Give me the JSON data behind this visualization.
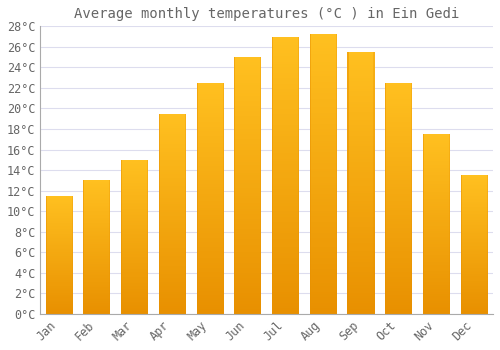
{
  "title": "Average monthly temperatures (°C ) in Ein Gedi",
  "months": [
    "Jan",
    "Feb",
    "Mar",
    "Apr",
    "May",
    "Jun",
    "Jul",
    "Aug",
    "Sep",
    "Oct",
    "Nov",
    "Dec"
  ],
  "values": [
    11.5,
    13.0,
    15.0,
    19.5,
    22.5,
    25.0,
    27.0,
    27.2,
    25.5,
    22.5,
    17.5,
    13.5
  ],
  "bar_color_top": "#FFC020",
  "bar_color_bottom": "#E89000",
  "bar_color_left": "#E89000",
  "background_color": "#FFFFFF",
  "grid_color": "#DDDDEE",
  "text_color": "#666666",
  "ylim": [
    0,
    28
  ],
  "ytick_step": 2,
  "title_fontsize": 10,
  "tick_fontsize": 8.5
}
